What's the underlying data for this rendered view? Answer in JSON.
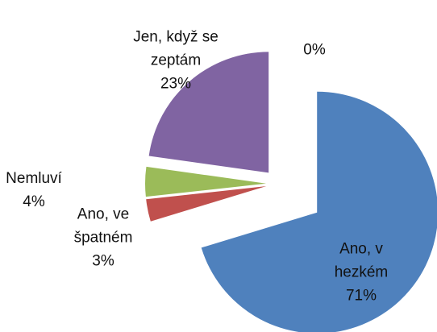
{
  "chart_data": {
    "type": "pie",
    "categories": [
      "Ano, v hezkém",
      "Ano, ve špatném",
      "Nemluví",
      "Jen, když se zeptám",
      null
    ],
    "values": [
      71,
      3,
      4,
      23,
      0
    ],
    "value_labels": [
      "71%",
      "3%",
      "4%",
      "23%",
      "0%"
    ],
    "colors": [
      "#4f81bd",
      "#c0504d",
      "#9bbb59",
      "#8064a2",
      "#4bacc6"
    ],
    "exploded": true
  }
}
